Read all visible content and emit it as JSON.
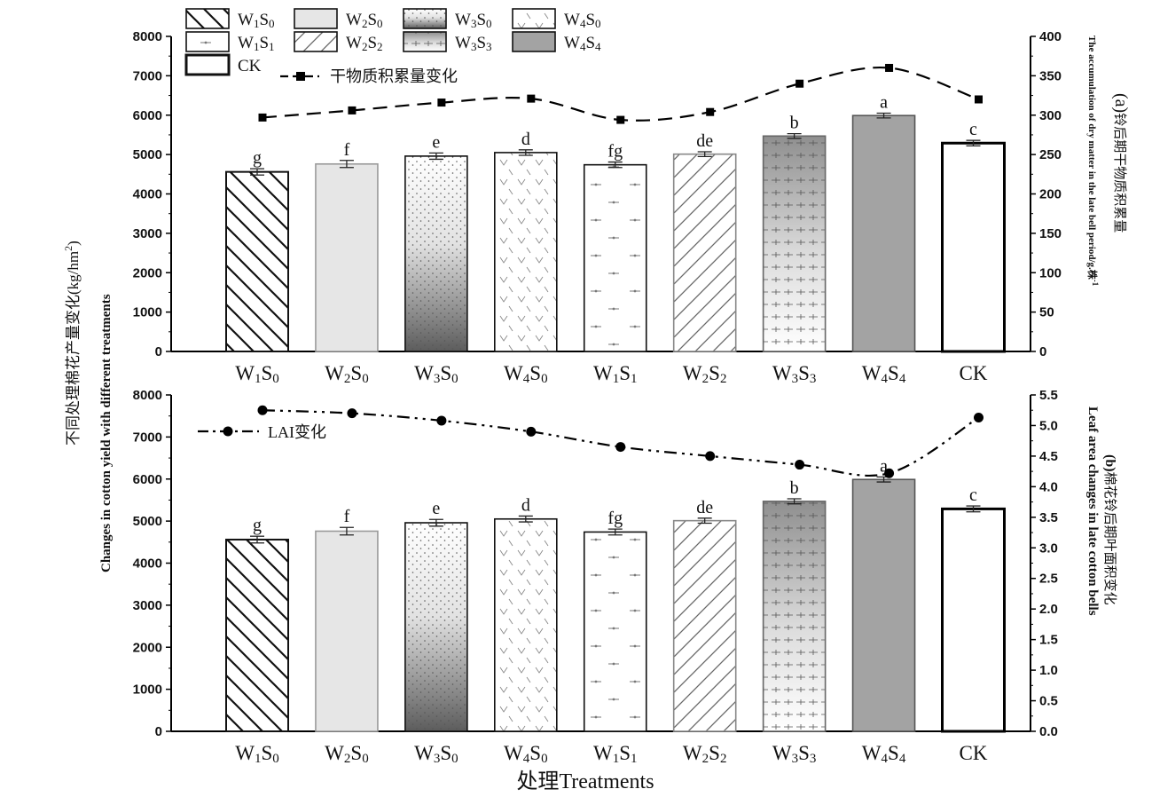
{
  "chart_data": [
    {
      "panel": "(a)",
      "type": "bar",
      "categories": [
        "W1S0",
        "W2S0",
        "W3S0",
        "W4S0",
        "W1S1",
        "W2S2",
        "W3S3",
        "W4S4",
        "CK"
      ],
      "category_labels": [
        {
          "main": "W",
          "s1": "1",
          "mid": "S",
          "s2": "0"
        },
        {
          "main": "W",
          "s1": "2",
          "mid": "S",
          "s2": "0"
        },
        {
          "main": "W",
          "s1": "3",
          "mid": "S",
          "s2": "0"
        },
        {
          "main": "W",
          "s1": "4",
          "mid": "S",
          "s2": "0"
        },
        {
          "main": "W",
          "s1": "1",
          "mid": "S",
          "s2": "1"
        },
        {
          "main": "W",
          "s1": "2",
          "mid": "S",
          "s2": "2"
        },
        {
          "main": "W",
          "s1": "3",
          "mid": "S",
          "s2": "3"
        },
        {
          "main": "W",
          "s1": "4",
          "mid": "S",
          "s2": "4"
        },
        {
          "main": "CK",
          "s1": "",
          "mid": "",
          "s2": ""
        }
      ],
      "series": [
        {
          "values": [
            4560,
            4760,
            4960,
            5050,
            4740,
            5010,
            5470,
            5990,
            5290
          ],
          "errors": [
            80,
            90,
            80,
            70,
            70,
            60,
            60,
            60,
            70
          ],
          "letters": [
            "g",
            "f",
            "e",
            "d",
            "fg",
            "de",
            "b",
            "a",
            "c"
          ]
        },
        {
          "name": "干物质积累量变化",
          "axis": "right",
          "values": [
            297,
            306,
            316,
            321,
            294,
            304,
            340,
            360,
            320
          ]
        }
      ],
      "ylabel_right_prefix": "(a)",
      "ylabel_right_cn": "铃后期干物质积累量",
      "ylabel_right_en": "The accumulation of dry matter in the late bell period/g.株",
      "ylabel_right_sup": "-1",
      "ylim": [
        0,
        8000
      ],
      "ylim_right": [
        0,
        400
      ],
      "yticks": [
        "0",
        "1000",
        "2000",
        "3000",
        "4000",
        "5000",
        "6000",
        "7000",
        "8000"
      ],
      "yticks_right": [
        "0",
        "50",
        "100",
        "150",
        "200",
        "250",
        "300",
        "350",
        "400"
      ],
      "grid": false,
      "legend_position": "top-left",
      "legend": [
        {
          "label": {
            "main": "W",
            "s1": "1",
            "mid": "S",
            "s2": "0"
          },
          "pattern": "hatch-back"
        },
        {
          "label": {
            "main": "W",
            "s1": "2",
            "mid": "S",
            "s2": "0"
          },
          "pattern": "light-gray"
        },
        {
          "label": {
            "main": "W",
            "s1": "3",
            "mid": "S",
            "s2": "0"
          },
          "pattern": "dots-gradient"
        },
        {
          "label": {
            "main": "W",
            "s1": "4",
            "mid": "S",
            "s2": "0"
          },
          "pattern": "chevrons"
        },
        {
          "label": {
            "main": "W",
            "s1": "1",
            "mid": "S",
            "s2": "1"
          },
          "pattern": "dash-dots"
        },
        {
          "label": {
            "main": "W",
            "s1": "2",
            "mid": "S",
            "s2": "2"
          },
          "pattern": "hatch-forward"
        },
        {
          "label": {
            "main": "W",
            "s1": "3",
            "mid": "S",
            "s2": "3"
          },
          "pattern": "cross-gradient"
        },
        {
          "label": {
            "main": "W",
            "s1": "4",
            "mid": "S",
            "s2": "4"
          },
          "pattern": "solid-gray"
        },
        {
          "label": {
            "main": "CK",
            "s1": "",
            "mid": "",
            "s2": ""
          },
          "pattern": "white"
        }
      ]
    },
    {
      "panel": "(b)",
      "type": "bar",
      "categories": [
        "W1S0",
        "W2S0",
        "W3S0",
        "W4S0",
        "W1S1",
        "W2S2",
        "W3S3",
        "W4S4",
        "CK"
      ],
      "series": [
        {
          "values": [
            4560,
            4760,
            4960,
            5050,
            4740,
            5010,
            5470,
            5990,
            5290
          ],
          "errors": [
            80,
            90,
            80,
            70,
            70,
            60,
            60,
            60,
            70
          ],
          "letters": [
            "g",
            "f",
            "e",
            "d",
            "fg",
            "de",
            "b",
            "a",
            "c"
          ]
        },
        {
          "name": "LAI变化",
          "axis": "right",
          "values": [
            5.25,
            5.2,
            5.08,
            4.9,
            4.65,
            4.5,
            4.36,
            4.22,
            5.13
          ]
        }
      ],
      "ylabel_right_prefix": "(b)",
      "ylabel_right_cn": "棉花铃后期叶面积变化",
      "ylabel_right_en": "Leaf area changes in late cotton bells",
      "ylim": [
        0,
        8000
      ],
      "ylim_right": [
        0,
        5.5
      ],
      "yticks": [
        "0",
        "1000",
        "2000",
        "3000",
        "4000",
        "5000",
        "6000",
        "7000",
        "8000"
      ],
      "yticks_right": [
        "0.0",
        "0.5",
        "1.0",
        "1.5",
        "2.0",
        "2.5",
        "3.0",
        "3.5",
        "4.0",
        "4.5",
        "5.0",
        "5.5"
      ],
      "grid": false
    }
  ],
  "ylabel_left_cn": "不同处理棉花产量变化",
  "ylabel_left_unit_pre": "(kg/hm",
  "ylabel_left_unit_sup": "2",
  "ylabel_left_unit_post": ")",
  "ylabel_left_en": "Changes in cotton yield with different treatments",
  "xlabel_cn": "处理",
  "xlabel_en": "Treatments"
}
